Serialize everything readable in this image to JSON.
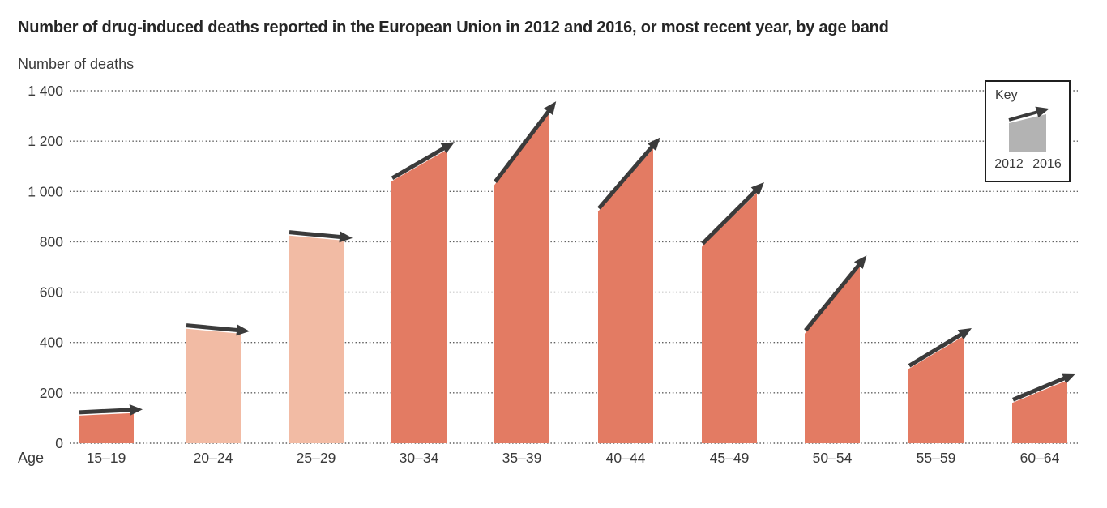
{
  "chart_data": {
    "type": "bar",
    "variant": "slope-arrow-bars",
    "title": "Number of drug-induced deaths reported in the European Union in 2012 and 2016, or most recent year, by age band",
    "ylabel": "Number of deaths",
    "xlabel": "Age",
    "categories": [
      "15–19",
      "20–24",
      "25–29",
      "30–34",
      "35–39",
      "40–44",
      "45–49",
      "50–54",
      "55–59",
      "60–64"
    ],
    "series": [
      {
        "name": "2012",
        "values": [
          110,
          455,
          825,
          1040,
          1025,
          920,
          780,
          435,
          295,
          160
        ]
      },
      {
        "name": "2016",
        "values": [
          120,
          435,
          805,
          1165,
          1310,
          1170,
          995,
          700,
          425,
          250
        ]
      }
    ],
    "ylim": [
      0,
      1400
    ],
    "ytick_step": 200,
    "ytick_labels": [
      "0",
      "200",
      "400",
      "600",
      "800",
      "1 000",
      "1 200",
      "1 400"
    ],
    "grid": "horizontal-dotted",
    "legend": {
      "label": "Key",
      "from": "2012",
      "to": "2016",
      "position": "top-right"
    },
    "colors": {
      "increase": "#E37B63",
      "decrease": "#F2BBA4",
      "arrow": "#3B3B3B",
      "key_fill": "#B3B3B3",
      "key_border": "#1F1F1F",
      "grid": "#606060",
      "text": "#3A3A3A",
      "title": "#262626"
    }
  }
}
